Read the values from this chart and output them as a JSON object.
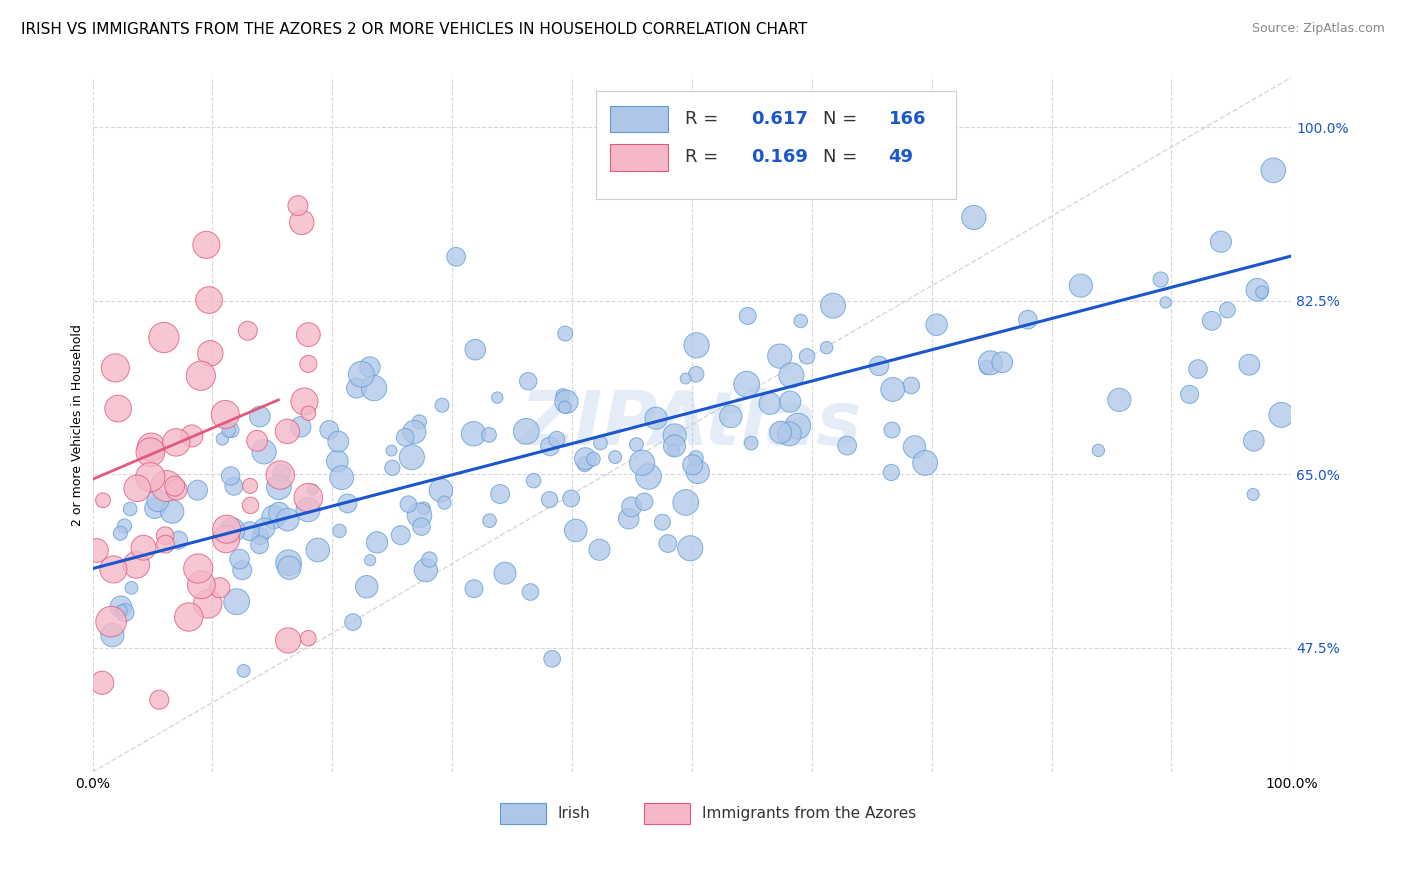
{
  "title": "IRISH VS IMMIGRANTS FROM THE AZORES 2 OR MORE VEHICLES IN HOUSEHOLD CORRELATION CHART",
  "source": "Source: ZipAtlas.com",
  "ylabel": "2 or more Vehicles in Household",
  "watermark": "ZIPAtlas",
  "xlim": [
    0.0,
    1.0
  ],
  "ylim": [
    0.35,
    1.05
  ],
  "y_tick_labels": [
    "47.5%",
    "65.0%",
    "82.5%",
    "100.0%"
  ],
  "y_tick_values": [
    0.475,
    0.65,
    0.825,
    1.0
  ],
  "x_tick_positions": [
    0.0,
    0.1,
    0.2,
    0.3,
    0.4,
    0.5,
    0.6,
    0.7,
    0.8,
    0.9,
    1.0
  ],
  "x_tick_labels": [
    "0.0%",
    "",
    "",
    "",
    "",
    "",
    "",
    "",
    "",
    "",
    "100.0%"
  ],
  "irish_color": "#aec6e8",
  "irish_edge_color": "#5b9bd5",
  "azores_color": "#f4b8c8",
  "azores_edge_color": "#e05a80",
  "irish_line_color": "#1a56cc",
  "azores_line_color": "#e05a80",
  "diagonal_color": "#c8c8c8",
  "R_irish": 0.617,
  "N_irish": 166,
  "R_azores": 0.169,
  "N_azores": 49,
  "legend_labels": [
    "Irish",
    "Immigrants from the Azores"
  ],
  "title_fontsize": 11,
  "axis_fontsize": 9,
  "tick_fontsize": 10,
  "legend_fontsize": 13,
  "source_fontsize": 9,
  "irish_line_x": [
    0.0,
    1.0
  ],
  "irish_line_y": [
    0.555,
    0.87
  ],
  "azores_line_x": [
    0.0,
    0.155
  ],
  "azores_line_y": [
    0.645,
    0.725
  ]
}
